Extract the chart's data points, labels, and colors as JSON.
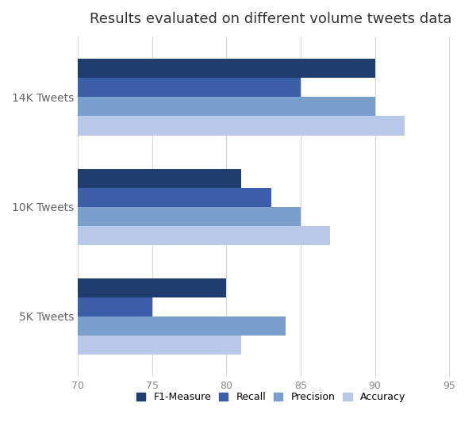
{
  "title": "Results evaluated on different volume tweets data",
  "categories": [
    "5K Tweets",
    "10K Tweets",
    "14K Tweets"
  ],
  "metrics": [
    "F1-Measure",
    "Recall",
    "Precision",
    "Accuracy"
  ],
  "values": {
    "5K Tweets": {
      "F1-Measure": 80,
      "Recall": 75,
      "Precision": 84,
      "Accuracy": 81
    },
    "10K Tweets": {
      "F1-Measure": 81,
      "Recall": 83,
      "Precision": 85,
      "Accuracy": 87
    },
    "14K Tweets": {
      "F1-Measure": 90,
      "Recall": 85,
      "Precision": 90,
      "Accuracy": 92
    }
  },
  "colors": {
    "F1-Measure": "#1F3D6E",
    "Recall": "#3A5FA8",
    "Precision": "#7B9FCC",
    "Accuracy": "#B8C8E8"
  },
  "xlim": [
    70,
    96
  ],
  "xticks": [
    70,
    75,
    80,
    85,
    90,
    95
  ],
  "background_color": "#ffffff",
  "grid_color": "#d8d8d8",
  "title_fontsize": 13,
  "label_fontsize": 10,
  "tick_fontsize": 9,
  "legend_fontsize": 9
}
